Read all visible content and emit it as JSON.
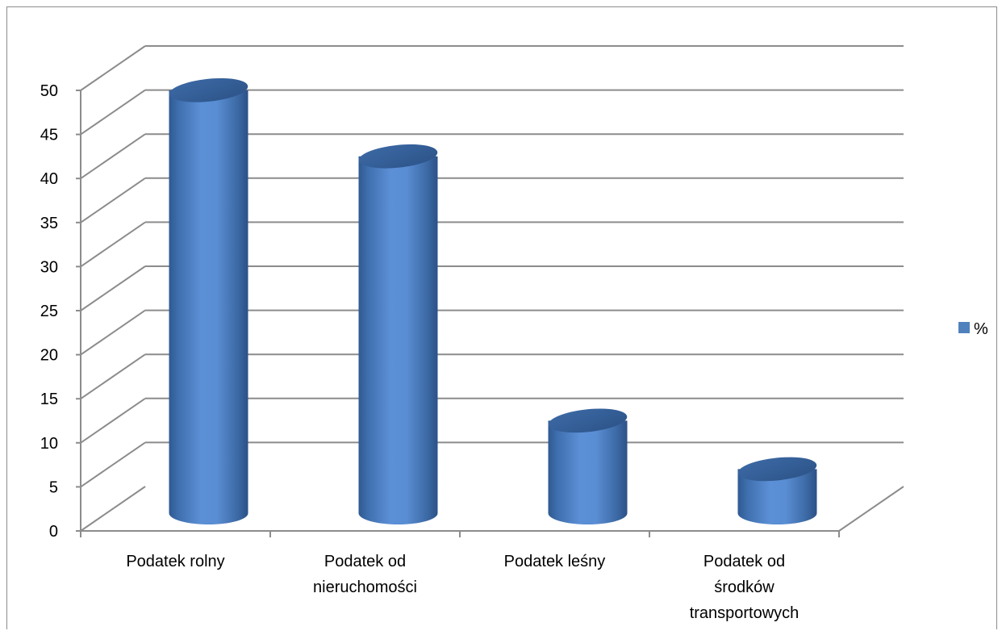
{
  "chart_data": {
    "type": "bar",
    "style": "3d-cylinder",
    "categories": [
      [
        "Podatek rolny"
      ],
      [
        "Podatek od",
        "nieruchomości"
      ],
      [
        "Podatek leśny"
      ],
      [
        "Podatek od",
        "środków",
        "transportowych"
      ]
    ],
    "series": [
      {
        "name": "%",
        "values": [
          48,
          40.5,
          10.5,
          5
        ],
        "color": "#4f81bd"
      }
    ],
    "ylim": [
      0,
      50
    ],
    "yticks": [
      0,
      5,
      10,
      15,
      20,
      25,
      30,
      35,
      40,
      45,
      50
    ],
    "grid": true,
    "legend": "right"
  }
}
